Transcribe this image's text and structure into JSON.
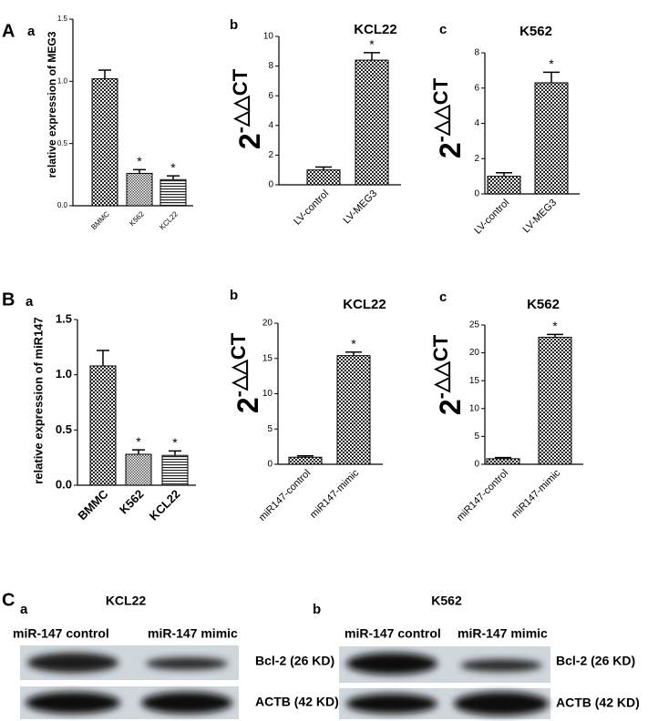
{
  "chart_data": [
    {
      "type": "bar",
      "section": "A",
      "panel": "a",
      "ylabel": "relative expression of MEG3",
      "categories": [
        "BMMC",
        "K562",
        "KCL22"
      ],
      "values": [
        1.02,
        0.26,
        0.21
      ],
      "errors": [
        0.07,
        0.03,
        0.03
      ],
      "annotations": [
        null,
        "*",
        "*"
      ],
      "fills": [
        "checker",
        "checker-fine",
        "stripes"
      ],
      "ylim": [
        0,
        1.5
      ],
      "yticks": [
        {
          "value": 0,
          "label": "0.0"
        },
        0.5,
        {
          "value": 1,
          "label": "1.0"
        },
        1.5
      ]
    },
    {
      "type": "bar",
      "panel": "b",
      "title": "KCL22",
      "ylabel": "2",
      "ylabel_sup": "-△△CT",
      "categories": [
        "LV-control",
        "LV-MEG3"
      ],
      "values": [
        1.0,
        8.4
      ],
      "errors": [
        0.2,
        0.5
      ],
      "annotations": [
        null,
        "*"
      ],
      "fills": [
        "checker",
        "checker"
      ],
      "ylim": [
        0,
        10
      ],
      "yticks": [
        0,
        2,
        4,
        6,
        8,
        10
      ]
    },
    {
      "type": "bar",
      "panel": "c",
      "title": "K562",
      "ylabel": "2",
      "ylabel_sup": "-△△CT",
      "categories": [
        "LV-control",
        "LV-MEG3"
      ],
      "values": [
        1.0,
        6.3
      ],
      "errors": [
        0.2,
        0.6
      ],
      "annotations": [
        null,
        "*"
      ],
      "fills": [
        "checker",
        "checker"
      ],
      "ylim": [
        0,
        8
      ],
      "yticks": [
        0,
        2,
        4,
        6,
        8
      ]
    },
    {
      "type": "bar",
      "section": "B",
      "panel": "a",
      "ylabel": "relative expression of miR147",
      "categories": [
        "BMMC",
        "K562",
        "KCL22"
      ],
      "values": [
        1.08,
        0.28,
        0.27
      ],
      "errors": [
        0.14,
        0.04,
        0.04
      ],
      "annotations": [
        null,
        "*",
        "*"
      ],
      "fills": [
        "checker",
        "checker-fine",
        "stripes"
      ],
      "ylim": [
        0,
        1.5
      ],
      "yticks": [
        {
          "value": 0,
          "label": "0.0"
        },
        0.5,
        {
          "value": 1,
          "label": "1.0"
        },
        1.5
      ]
    },
    {
      "type": "bar",
      "panel": "b",
      "title": "KCL22",
      "ylabel": "2",
      "ylabel_sup": "-△△CT",
      "categories": [
        "miR147-control",
        "miR147-mimic"
      ],
      "values": [
        1.0,
        15.4
      ],
      "errors": [
        0.2,
        0.5
      ],
      "annotations": [
        null,
        "*"
      ],
      "fills": [
        "checker",
        "checker"
      ],
      "ylim": [
        0,
        20
      ],
      "yticks": [
        0,
        5,
        10,
        15,
        20
      ]
    },
    {
      "type": "bar",
      "panel": "c",
      "title": "K562",
      "ylabel": "2",
      "ylabel_sup": "-△△CT",
      "categories": [
        "miR147-control",
        "miR147-mimic"
      ],
      "values": [
        1.0,
        22.8
      ],
      "errors": [
        0.2,
        0.5
      ],
      "annotations": [
        null,
        "*"
      ],
      "fills": [
        "checker",
        "checker"
      ],
      "ylim": [
        0,
        25
      ],
      "yticks": [
        0,
        5,
        10,
        15,
        20,
        25
      ]
    }
  ],
  "blots": {
    "section": "C",
    "panels": [
      {
        "panel": "a",
        "title": "KCL22",
        "lanes": [
          "miR-147 control",
          "miR-147 mimic"
        ],
        "bands": [
          "Bcl-2 (26 KD)",
          "ACTB (42 KD)"
        ]
      },
      {
        "panel": "b",
        "title": "K562",
        "lanes": [
          "miR-147 control",
          "miR-147 mimic"
        ],
        "bands": [
          "Bcl-2 (26 KD)",
          "ACTB (42 KD)"
        ]
      }
    ]
  }
}
